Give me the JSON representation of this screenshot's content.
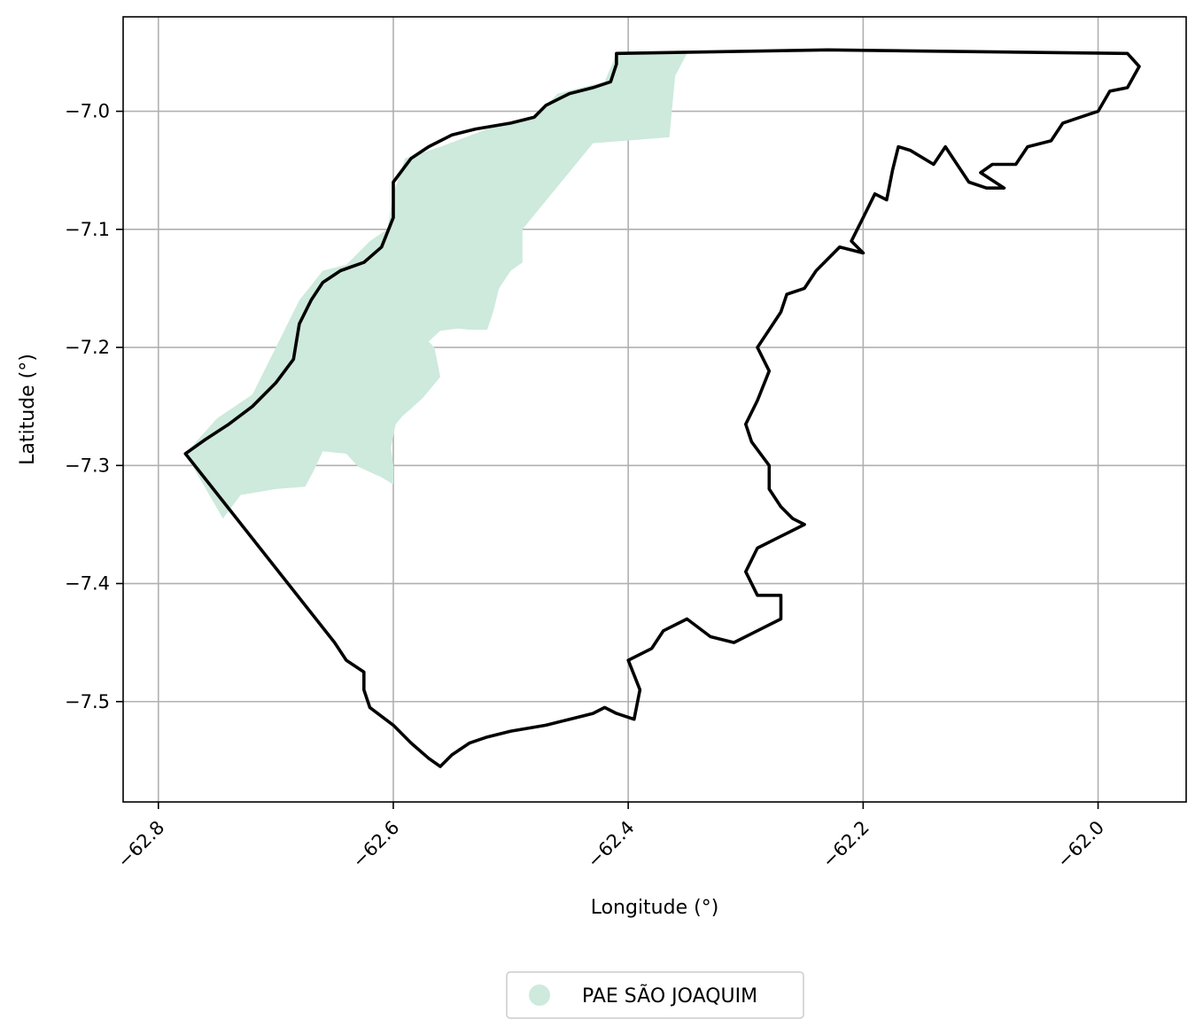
{
  "chart_data": {
    "type": "map",
    "xlabel": "Longitude (°)",
    "ylabel": "Latitude (°)",
    "xlim": [
      -62.83,
      -61.925
    ],
    "ylim": [
      -7.585,
      -6.92
    ],
    "x_ticks": [
      -62.8,
      -62.6,
      -62.4,
      -62.2,
      -62.0
    ],
    "x_tick_labels": [
      "−62.8",
      "−62.6",
      "−62.4",
      "−62.2",
      "−62.0"
    ],
    "y_ticks": [
      -7.0,
      -7.1,
      -7.2,
      -7.3,
      -7.4,
      -7.5
    ],
    "y_tick_labels": [
      "−7.0",
      "−7.1",
      "−7.2",
      "−7.3",
      "−7.4",
      "−7.5"
    ],
    "grid": true,
    "legend_position": "bottom-center",
    "layers": [
      {
        "name": "PAE SÃO JOAQUIM",
        "role": "filled-area",
        "color": "#cdeadc",
        "coordinates": [
          [
            -62.41,
            -6.951
          ],
          [
            -62.35,
            -6.951
          ],
          [
            -62.36,
            -6.97
          ],
          [
            -62.365,
            -7.022
          ],
          [
            -62.43,
            -7.027
          ],
          [
            -62.49,
            -7.1
          ],
          [
            -62.49,
            -7.128
          ],
          [
            -62.5,
            -7.135
          ],
          [
            -62.51,
            -7.15
          ],
          [
            -62.515,
            -7.17
          ],
          [
            -62.52,
            -7.185
          ],
          [
            -62.535,
            -7.185
          ],
          [
            -62.545,
            -7.184
          ],
          [
            -62.56,
            -7.186
          ],
          [
            -62.57,
            -7.195
          ],
          [
            -62.565,
            -7.2
          ],
          [
            -62.56,
            -7.225
          ],
          [
            -62.575,
            -7.243
          ],
          [
            -62.585,
            -7.252
          ],
          [
            -62.592,
            -7.258
          ],
          [
            -62.598,
            -7.265
          ],
          [
            -62.6,
            -7.275
          ],
          [
            -62.602,
            -7.285
          ],
          [
            -62.6,
            -7.3
          ],
          [
            -62.6,
            -7.316
          ],
          [
            -62.61,
            -7.31
          ],
          [
            -62.63,
            -7.301
          ],
          [
            -62.64,
            -7.29
          ],
          [
            -62.66,
            -7.288
          ],
          [
            -62.668,
            -7.305
          ],
          [
            -62.675,
            -7.318
          ],
          [
            -62.7,
            -7.32
          ],
          [
            -62.73,
            -7.325
          ],
          [
            -62.745,
            -7.345
          ],
          [
            -62.777,
            -7.29
          ],
          [
            -62.75,
            -7.26
          ],
          [
            -62.72,
            -7.24
          ],
          [
            -62.7,
            -7.2
          ],
          [
            -62.68,
            -7.16
          ],
          [
            -62.66,
            -7.135
          ],
          [
            -62.64,
            -7.13
          ],
          [
            -62.62,
            -7.11
          ],
          [
            -62.605,
            -7.1
          ],
          [
            -62.6,
            -7.07
          ],
          [
            -62.59,
            -7.04
          ],
          [
            -62.56,
            -7.03
          ],
          [
            -62.52,
            -7.015
          ],
          [
            -62.48,
            -7.005
          ],
          [
            -62.46,
            -6.985
          ],
          [
            -62.42,
            -6.975
          ]
        ]
      },
      {
        "name": "boundary",
        "role": "outline",
        "color": "#000000",
        "coordinates": [
          [
            -62.41,
            -6.951
          ],
          [
            -62.23,
            -6.948
          ],
          [
            -61.975,
            -6.951
          ],
          [
            -61.965,
            -6.962
          ],
          [
            -61.975,
            -6.98
          ],
          [
            -61.99,
            -6.983
          ],
          [
            -62.0,
            -7.0
          ],
          [
            -62.015,
            -7.005
          ],
          [
            -62.03,
            -7.01
          ],
          [
            -62.04,
            -7.025
          ],
          [
            -62.06,
            -7.03
          ],
          [
            -62.07,
            -7.045
          ],
          [
            -62.09,
            -7.045
          ],
          [
            -62.1,
            -7.052
          ],
          [
            -62.08,
            -7.065
          ],
          [
            -62.095,
            -7.065
          ],
          [
            -62.11,
            -7.06
          ],
          [
            -62.12,
            -7.045
          ],
          [
            -62.13,
            -7.03
          ],
          [
            -62.14,
            -7.045
          ],
          [
            -62.16,
            -7.033
          ],
          [
            -62.17,
            -7.03
          ],
          [
            -62.175,
            -7.05
          ],
          [
            -62.18,
            -7.075
          ],
          [
            -62.19,
            -7.07
          ],
          [
            -62.2,
            -7.09
          ],
          [
            -62.21,
            -7.11
          ],
          [
            -62.2,
            -7.12
          ],
          [
            -62.22,
            -7.115
          ],
          [
            -62.24,
            -7.135
          ],
          [
            -62.25,
            -7.15
          ],
          [
            -62.265,
            -7.155
          ],
          [
            -62.27,
            -7.17
          ],
          [
            -62.28,
            -7.185
          ],
          [
            -62.29,
            -7.2
          ],
          [
            -62.28,
            -7.22
          ],
          [
            -62.29,
            -7.245
          ],
          [
            -62.3,
            -7.265
          ],
          [
            -62.295,
            -7.28
          ],
          [
            -62.28,
            -7.3
          ],
          [
            -62.28,
            -7.32
          ],
          [
            -62.27,
            -7.335
          ],
          [
            -62.26,
            -7.345
          ],
          [
            -62.25,
            -7.35
          ],
          [
            -62.27,
            -7.36
          ],
          [
            -62.29,
            -7.37
          ],
          [
            -62.3,
            -7.39
          ],
          [
            -62.29,
            -7.41
          ],
          [
            -62.27,
            -7.41
          ],
          [
            -62.27,
            -7.43
          ],
          [
            -62.29,
            -7.44
          ],
          [
            -62.31,
            -7.45
          ],
          [
            -62.33,
            -7.445
          ],
          [
            -62.35,
            -7.43
          ],
          [
            -62.37,
            -7.44
          ],
          [
            -62.38,
            -7.455
          ],
          [
            -62.4,
            -7.465
          ],
          [
            -62.39,
            -7.49
          ],
          [
            -62.395,
            -7.515
          ],
          [
            -62.41,
            -7.51
          ],
          [
            -62.42,
            -7.505
          ],
          [
            -62.43,
            -7.51
          ],
          [
            -62.45,
            -7.515
          ],
          [
            -62.47,
            -7.52
          ],
          [
            -62.5,
            -7.525
          ],
          [
            -62.52,
            -7.53
          ],
          [
            -62.535,
            -7.535
          ],
          [
            -62.55,
            -7.545
          ],
          [
            -62.56,
            -7.555
          ],
          [
            -62.57,
            -7.548
          ],
          [
            -62.585,
            -7.535
          ],
          [
            -62.6,
            -7.52
          ],
          [
            -62.62,
            -7.505
          ],
          [
            -62.625,
            -7.49
          ],
          [
            -62.625,
            -7.475
          ],
          [
            -62.64,
            -7.465
          ],
          [
            -62.65,
            -7.45
          ],
          [
            -62.777,
            -7.29
          ],
          [
            -62.76,
            -7.278
          ],
          [
            -62.74,
            -7.265
          ],
          [
            -62.72,
            -7.25
          ],
          [
            -62.7,
            -7.23
          ],
          [
            -62.685,
            -7.21
          ],
          [
            -62.68,
            -7.18
          ],
          [
            -62.67,
            -7.16
          ],
          [
            -62.66,
            -7.145
          ],
          [
            -62.645,
            -7.135
          ],
          [
            -62.625,
            -7.128
          ],
          [
            -62.61,
            -7.115
          ],
          [
            -62.6,
            -7.09
          ],
          [
            -62.6,
            -7.06
          ],
          [
            -62.585,
            -7.04
          ],
          [
            -62.57,
            -7.03
          ],
          [
            -62.55,
            -7.02
          ],
          [
            -62.53,
            -7.015
          ],
          [
            -62.5,
            -7.01
          ],
          [
            -62.48,
            -7.005
          ],
          [
            -62.47,
            -6.995
          ],
          [
            -62.45,
            -6.985
          ],
          [
            -62.43,
            -6.98
          ],
          [
            -62.415,
            -6.975
          ],
          [
            -62.41,
            -6.96
          ],
          [
            -62.41,
            -6.951
          ]
        ]
      }
    ],
    "legend": [
      {
        "label": "PAE SÃO JOAQUIM",
        "marker": "circle",
        "color": "#cdeadc"
      }
    ]
  }
}
